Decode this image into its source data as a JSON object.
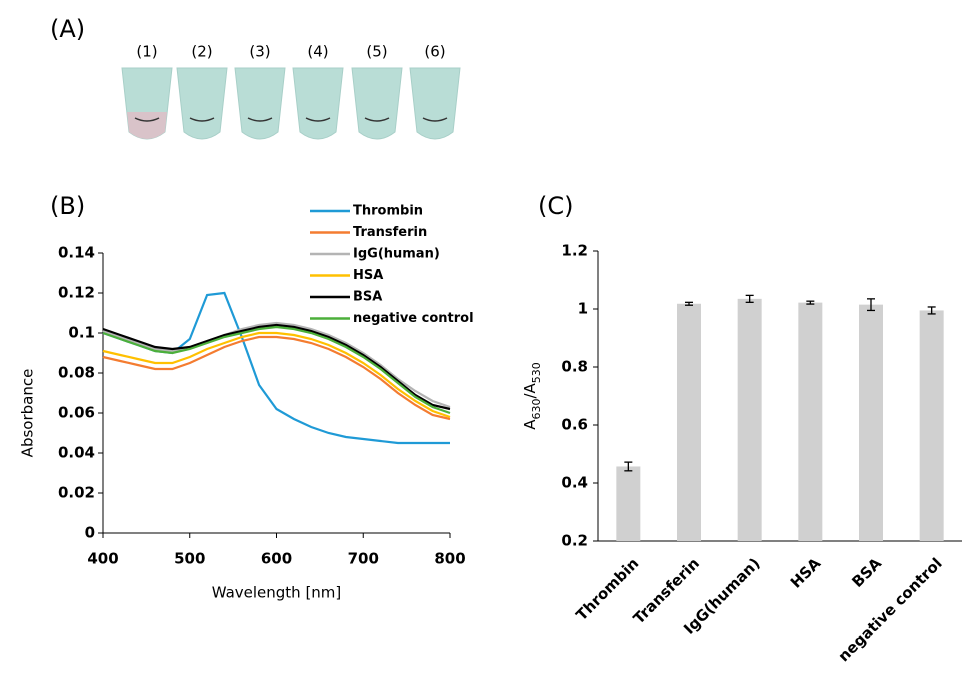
{
  "figure": {
    "panel_labels": [
      "(A)",
      "(B)",
      "(C)"
    ],
    "tube_labels": [
      "(1)",
      "(2)",
      "(3)",
      "(4)",
      "(5)",
      "(6)"
    ]
  },
  "chart_data": [
    {
      "type": "line",
      "xlabel": "Wavelength [nm]",
      "ylabel": "Absorbance",
      "xlim": [
        400,
        800
      ],
      "xticks": [
        400,
        500,
        600,
        700,
        800
      ],
      "ylim": [
        0,
        0.14
      ],
      "yticks": [
        0,
        0.02,
        0.04,
        0.06,
        0.08,
        0.1,
        0.12,
        0.14
      ],
      "x": [
        400,
        420,
        440,
        460,
        480,
        500,
        520,
        540,
        560,
        580,
        600,
        620,
        640,
        660,
        680,
        700,
        720,
        740,
        760,
        780,
        800
      ],
      "series": [
        {
          "name": "Thrombin",
          "color": "#1f9ad6",
          "values": [
            0.1,
            0.097,
            0.094,
            0.091,
            0.09,
            0.097,
            0.119,
            0.12,
            0.098,
            0.074,
            0.062,
            0.057,
            0.053,
            0.05,
            0.048,
            0.047,
            0.046,
            0.045,
            0.045,
            0.045,
            0.045
          ]
        },
        {
          "name": "Transferin",
          "color": "#f47c30",
          "values": [
            0.088,
            0.086,
            0.084,
            0.082,
            0.082,
            0.085,
            0.089,
            0.093,
            0.096,
            0.098,
            0.098,
            0.097,
            0.095,
            0.092,
            0.088,
            0.083,
            0.077,
            0.07,
            0.064,
            0.059,
            0.057
          ]
        },
        {
          "name": "IgG(human)",
          "color": "#b4b4b4",
          "values": [
            0.101,
            0.098,
            0.095,
            0.092,
            0.091,
            0.093,
            0.096,
            0.099,
            0.102,
            0.104,
            0.105,
            0.104,
            0.102,
            0.099,
            0.095,
            0.09,
            0.084,
            0.077,
            0.071,
            0.066,
            0.063
          ]
        },
        {
          "name": "HSA",
          "color": "#ffc000",
          "values": [
            0.091,
            0.089,
            0.087,
            0.085,
            0.085,
            0.088,
            0.092,
            0.095,
            0.098,
            0.1,
            0.1,
            0.099,
            0.097,
            0.094,
            0.09,
            0.085,
            0.079,
            0.072,
            0.066,
            0.061,
            0.058
          ]
        },
        {
          "name": "BSA",
          "color": "#000000",
          "values": [
            0.102,
            0.099,
            0.096,
            0.093,
            0.092,
            0.093,
            0.096,
            0.099,
            0.101,
            0.103,
            0.104,
            0.103,
            0.101,
            0.098,
            0.094,
            0.089,
            0.083,
            0.076,
            0.069,
            0.064,
            0.062
          ]
        },
        {
          "name": "negative control",
          "color": "#4caf3a",
          "values": [
            0.1,
            0.097,
            0.094,
            0.091,
            0.09,
            0.092,
            0.095,
            0.098,
            0.1,
            0.102,
            0.103,
            0.102,
            0.1,
            0.097,
            0.093,
            0.088,
            0.082,
            0.075,
            0.068,
            0.063,
            0.06
          ]
        }
      ]
    },
    {
      "type": "bar",
      "ylabel": [
        "A",
        "630",
        "/A",
        "530"
      ],
      "color": "#d0d0d0",
      "categories": [
        "Thrombin",
        "Transferin",
        "IgG(human)",
        "HSA",
        "BSA",
        "negative control"
      ],
      "values": [
        0.457,
        1.018,
        1.035,
        1.022,
        1.015,
        0.995
      ],
      "errors": [
        0.015,
        0.005,
        0.012,
        0.005,
        0.02,
        0.012
      ],
      "ylim": [
        0.2,
        1.2
      ],
      "yticks": [
        0.2,
        0.4,
        0.6,
        0.8,
        1,
        1.2
      ]
    }
  ]
}
